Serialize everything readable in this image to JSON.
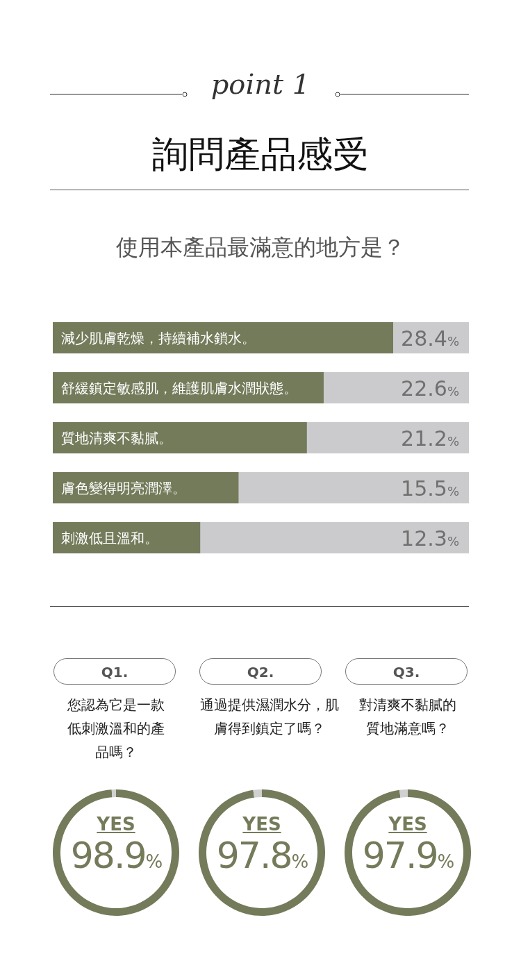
{
  "chart_data": [
    {
      "type": "bar",
      "orientation": "horizontal",
      "annotations": [
        "point 1"
      ],
      "title": "詢問產品感受",
      "subtitle": "使用本產品最滿意的地方是？",
      "categories": [
        "減少肌膚乾燥，持續補水鎖水。",
        "舒緩鎮定敏感肌，維護肌膚水潤狀態。",
        "質地清爽不黏膩。",
        "膚色變得明亮潤澤。",
        "刺激低且溫和。"
      ],
      "values": [
        28.4,
        22.6,
        21.2,
        15.5,
        12.3
      ],
      "color": "#737b5a",
      "value_labels": [
        "28.4%",
        "22.6%",
        "21.2%",
        "15.5%",
        "12.3%"
      ],
      "legend": false
    },
    {
      "type": "donut",
      "title": "Q1.",
      "subtitle": "您認為它是一款低刺激溫和的產品嗎？",
      "categories": [
        "YES",
        null
      ],
      "values": [
        98.9,
        1.1
      ],
      "colors": [
        "#737b5a",
        "#d0d0d0"
      ],
      "value_labels": [
        "98.9%",
        null
      ],
      "legend": false
    },
    {
      "type": "donut",
      "title": "Q2.",
      "subtitle": "通過提供濕潤水分，肌膚得到鎮定了嗎？",
      "categories": [
        "YES",
        null
      ],
      "values": [
        97.8,
        2.2
      ],
      "colors": [
        "#737b5a",
        "#d0d0d0"
      ],
      "value_labels": [
        "97.8%",
        null
      ],
      "legend": false
    },
    {
      "type": "donut",
      "title": "Q3.",
      "subtitle": "對清爽不黏膩的質地滿意嗎？",
      "categories": [
        "YES",
        null
      ],
      "values": [
        97.9,
        2.1
      ],
      "colors": [
        "#737b5a",
        "#d0d0d0"
      ],
      "value_labels": [
        "97.9%",
        null
      ],
      "legend": false
    }
  ]
}
